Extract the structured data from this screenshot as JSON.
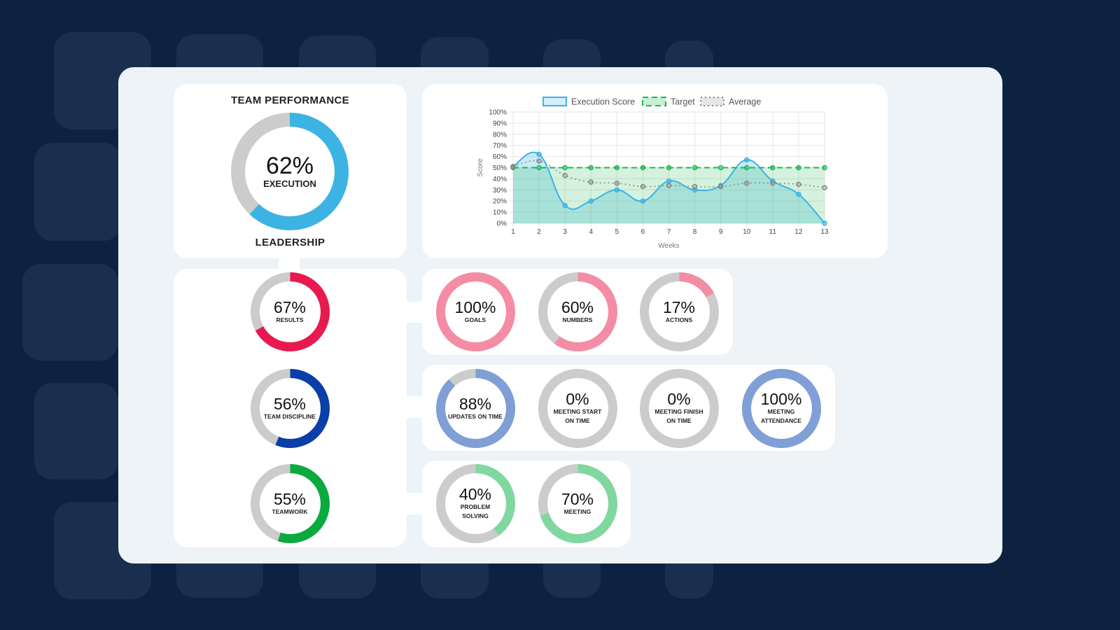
{
  "colors": {
    "background": "#0c2240",
    "panel": "#eef3f8",
    "track": "#cccccc",
    "execution": "#3db3e3",
    "target": "#1db954",
    "average": "#888888"
  },
  "team_performance": {
    "title": "TEAM PERFORMANCE",
    "value": 62,
    "value_text": "62%",
    "label": "EXECUTION",
    "footer": "LEADERSHIP",
    "color": "#3db3e3"
  },
  "categories": [
    {
      "value": 67,
      "value_text": "67%",
      "label": "RESULTS",
      "color": "#e8194f",
      "children": [
        {
          "value": 100,
          "value_text": "100%",
          "label": "GOALS",
          "color": "#f48ca6"
        },
        {
          "value": 60,
          "value_text": "60%",
          "label": "NUMBERS",
          "color": "#f48ca6"
        },
        {
          "value": 17,
          "value_text": "17%",
          "label": "ACTIONS",
          "color": "#f48ca6"
        }
      ]
    },
    {
      "value": 56,
      "value_text": "56%",
      "label": "TEAM DISCIPLINE",
      "color": "#0a3ea8",
      "children": [
        {
          "value": 88,
          "value_text": "88%",
          "label": "UPDATES ON TIME",
          "color": "#7f9fd6"
        },
        {
          "value": 0,
          "value_text": "0%",
          "label": "MEETING START ON TIME",
          "color": "#7f9fd6"
        },
        {
          "value": 0,
          "value_text": "0%",
          "label": "MEETING FINISH ON TIME",
          "color": "#7f9fd6"
        },
        {
          "value": 100,
          "value_text": "100%",
          "label": "MEETING ATTENDANCE",
          "color": "#7f9fd6"
        }
      ]
    },
    {
      "value": 55,
      "value_text": "55%",
      "label": "TEAMWORK",
      "color": "#0aaa3f",
      "children": [
        {
          "value": 40,
          "value_text": "40%",
          "label": "PROBLEM SOLVING",
          "color": "#80d8a0"
        },
        {
          "value": 70,
          "value_text": "70%",
          "label": "MEETING",
          "color": "#80d8a0"
        }
      ]
    }
  ],
  "chart_data": {
    "type": "line",
    "xlabel": "Weeks",
    "ylabel": "Score",
    "x": [
      1,
      2,
      3,
      4,
      5,
      6,
      7,
      8,
      9,
      10,
      11,
      12,
      13
    ],
    "ylim": [
      0,
      100
    ],
    "yticks": [
      "0%",
      "10%",
      "20%",
      "30%",
      "40%",
      "50%",
      "60%",
      "70%",
      "80%",
      "90%",
      "100%"
    ],
    "grid": true,
    "legend_position": "top",
    "series": [
      {
        "name": "Execution Score",
        "values": [
          51,
          62,
          16,
          20,
          30,
          20,
          38,
          30,
          34,
          57,
          38,
          26,
          0
        ],
        "color": "#3db3e3",
        "style": "solid",
        "fill": true
      },
      {
        "name": "Target",
        "values": [
          50,
          50,
          50,
          50,
          50,
          50,
          50,
          50,
          50,
          50,
          50,
          50,
          50
        ],
        "color": "#1db954",
        "style": "dashed",
        "fill": true
      },
      {
        "name": "Average",
        "values": [
          51,
          56,
          43,
          37,
          36,
          33,
          34,
          33,
          33,
          36,
          36,
          35,
          32
        ],
        "color": "#888888",
        "style": "dotted",
        "fill": false
      }
    ]
  }
}
